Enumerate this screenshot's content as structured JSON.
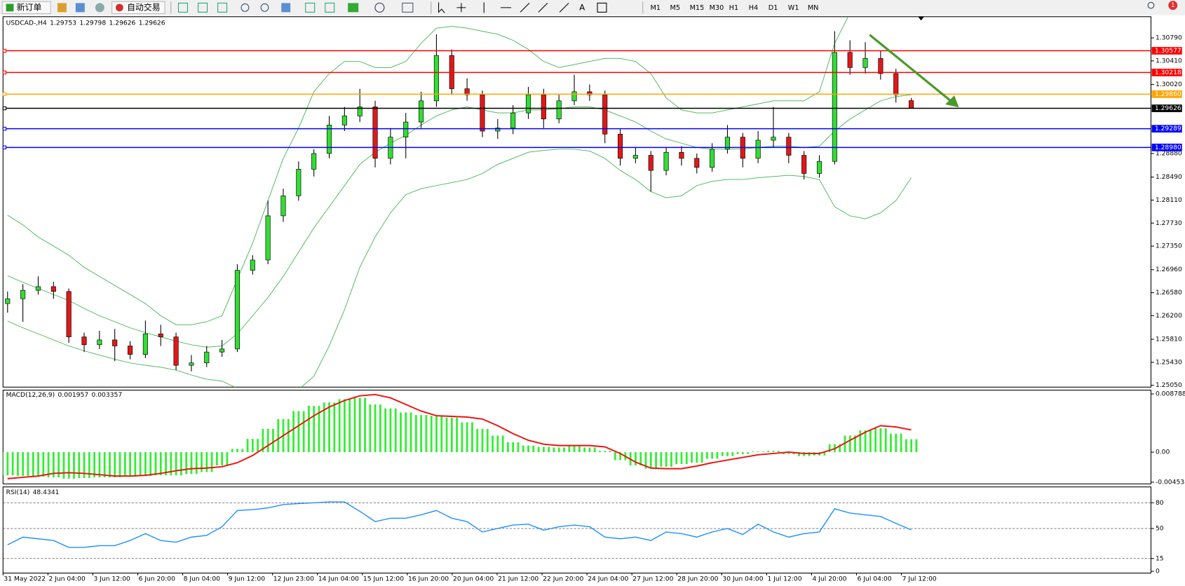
{
  "toolbar": {
    "new_order": "新订单",
    "auto_trading": "自动交易",
    "timeframes": [
      "M1",
      "M5",
      "M15",
      "M30",
      "H1",
      "H4",
      "D1",
      "W1",
      "MN"
    ],
    "badge": "1"
  },
  "time_axis": {
    "labels": [
      "31 May 2022",
      "2 Jun 04:00",
      "3 Jun 12:00",
      "6 Jun 20:00",
      "8 Jun 04:00",
      "9 Jun 12:00",
      "12 Jun 23:00",
      "14 Jun 04:00",
      "15 Jun 12:00",
      "16 Jun 20:00",
      "20 Jun 04:00",
      "21 Jun 12:00",
      "22 Jun 20:00",
      "24 Jun 04:00",
      "27 Jun 12:00",
      "28 Jun 20:00",
      "30 Jun 04:00",
      "1 Jul 12:00",
      "4 Jul 20:00",
      "6 Jul 04:00",
      "7 Jul 12:00"
    ]
  },
  "chart_data": [
    {
      "type": "candlestick",
      "title": "USDCAD-,H4",
      "up_color": "#33dd33",
      "down_color": "#e01818",
      "grid": false,
      "ylim": [
        1.2502,
        1.3114
      ],
      "yticks": [
        {
          "value": 1.3079,
          "label": "1.30790"
        },
        {
          "value": 1.3041,
          "label": "1.30410"
        },
        {
          "value": 1.3002,
          "label": "1.30020"
        },
        {
          "value": 1.2888,
          "label": "1.28880"
        },
        {
          "value": 1.2849,
          "label": "1.28490"
        },
        {
          "value": 1.2811,
          "label": "1.28110"
        },
        {
          "value": 1.2773,
          "label": "1.27730"
        },
        {
          "value": 1.2735,
          "label": "1.27350"
        },
        {
          "value": 1.2696,
          "label": "1.26960"
        },
        {
          "value": 1.2658,
          "label": "1.26580"
        },
        {
          "value": 1.262,
          "label": "1.26200"
        },
        {
          "value": 1.2581,
          "label": "1.25810"
        },
        {
          "value": 1.2543,
          "label": "1.25430"
        },
        {
          "value": 1.2505,
          "label": "1.25050"
        }
      ],
      "open": [
        1.264,
        1.2648,
        1.2662,
        1.2668,
        1.266,
        1.2585,
        1.2572,
        1.258,
        1.257,
        1.2556,
        1.259,
        1.2585,
        1.2538,
        1.2542,
        1.256,
        1.2565,
        1.2695,
        1.2712,
        1.2785,
        1.2818,
        1.2862,
        1.2888,
        1.2935,
        1.295,
        1.2965,
        1.288,
        1.2915,
        1.294,
        1.2975,
        1.305,
        1.2995,
        1.2985,
        1.2925,
        1.293,
        1.2955,
        1.2985,
        1.2945,
        1.2975,
        1.299,
        1.2985,
        1.292,
        1.288,
        1.2885,
        1.286,
        1.289,
        1.288,
        1.2865,
        1.2895,
        1.2915,
        1.288,
        1.291,
        1.2915,
        1.2885,
        1.2855,
        1.2875,
        1.3055,
        1.303,
        1.3045,
        1.302,
        1.29753
      ],
      "high": [
        1.266,
        1.2672,
        1.2685,
        1.2676,
        1.2665,
        1.2592,
        1.2595,
        1.2598,
        1.2578,
        1.2612,
        1.2605,
        1.2592,
        1.2555,
        1.257,
        1.258,
        1.2705,
        1.272,
        1.281,
        1.283,
        1.2875,
        1.2895,
        1.295,
        1.2965,
        1.2995,
        1.2975,
        1.293,
        1.2955,
        1.299,
        1.3085,
        1.306,
        1.3012,
        1.2992,
        1.2945,
        1.2968,
        1.2998,
        1.2995,
        1.2985,
        1.3018,
        1.3002,
        1.2992,
        1.2928,
        1.2898,
        1.2892,
        1.2898,
        1.29,
        1.2888,
        1.2905,
        1.2935,
        1.2922,
        1.2925,
        1.2965,
        1.2922,
        1.2892,
        1.2885,
        1.309,
        1.3075,
        1.3072,
        1.3058,
        1.3028,
        1.29798
      ],
      "low": [
        1.2625,
        1.261,
        1.2655,
        1.2648,
        1.2575,
        1.256,
        1.2565,
        1.2545,
        1.2548,
        1.255,
        1.257,
        1.253,
        1.2528,
        1.2535,
        1.2552,
        1.256,
        1.2688,
        1.2705,
        1.2775,
        1.281,
        1.285,
        1.288,
        1.2925,
        1.294,
        1.2865,
        1.287,
        1.288,
        1.293,
        1.2965,
        1.2985,
        1.2975,
        1.2915,
        1.2912,
        1.292,
        1.2945,
        1.293,
        1.2938,
        1.2968,
        1.2975,
        1.2905,
        1.2868,
        1.2872,
        1.2825,
        1.2852,
        1.2868,
        1.2855,
        1.2858,
        1.2888,
        1.2865,
        1.2872,
        1.2898,
        1.2872,
        1.2845,
        1.2848,
        1.287,
        1.3018,
        1.302,
        1.301,
        1.2972,
        1.29626
      ],
      "close": [
        1.2648,
        1.2662,
        1.2668,
        1.266,
        1.2585,
        1.2572,
        1.258,
        1.257,
        1.2556,
        1.259,
        1.2585,
        1.2538,
        1.2542,
        1.256,
        1.2565,
        1.2695,
        1.2712,
        1.2785,
        1.2818,
        1.2862,
        1.2888,
        1.2935,
        1.295,
        1.2965,
        1.288,
        1.2915,
        1.294,
        1.2975,
        1.305,
        1.2995,
        1.2985,
        1.2925,
        1.293,
        1.2955,
        1.2985,
        1.2945,
        1.2975,
        1.299,
        1.2985,
        1.292,
        1.288,
        1.2885,
        1.286,
        1.289,
        1.288,
        1.2865,
        1.2895,
        1.2915,
        1.288,
        1.291,
        1.2915,
        1.2885,
        1.2855,
        1.2875,
        1.3055,
        1.303,
        1.3045,
        1.302,
        1.2985,
        1.29626
      ],
      "bands": [
        {
          "color": "#3cb44b",
          "values": [
            1.2786,
            1.277,
            1.275,
            1.2735,
            1.272,
            1.27,
            1.2685,
            1.267,
            1.2655,
            1.264,
            1.262,
            1.2605,
            1.2605,
            1.261,
            1.262,
            1.268,
            1.274,
            1.281,
            1.288,
            1.293,
            1.299,
            1.302,
            1.304,
            1.304,
            1.303,
            1.303,
            1.304,
            1.307,
            1.3095,
            1.3098,
            1.3095,
            1.309,
            1.3085,
            1.3075,
            1.306,
            1.304,
            1.303,
            1.3035,
            1.304,
            1.3045,
            1.3045,
            1.304,
            1.302,
            1.298,
            1.296,
            1.2955,
            1.2955,
            1.296,
            1.2965,
            1.297,
            1.2975,
            1.2975,
            1.2975,
            1.299,
            1.307,
            1.312,
            1.315,
            1.317,
            1.318,
            1.3185
          ]
        },
        {
          "color": "#3cb44b",
          "values": [
            1.2686,
            1.2675,
            1.2665,
            1.2655,
            1.2645,
            1.2632,
            1.262,
            1.261,
            1.26,
            1.2592,
            1.2585,
            1.2578,
            1.2572,
            1.2568,
            1.257,
            1.259,
            1.262,
            1.265,
            1.2685,
            1.2725,
            1.2765,
            1.28,
            1.2835,
            1.287,
            1.289,
            1.2905,
            1.2918,
            1.2935,
            1.295,
            1.296,
            1.2965,
            1.296,
            1.2955,
            1.2955,
            1.296,
            1.296,
            1.2962,
            1.2965,
            1.2965,
            1.296,
            1.295,
            1.294,
            1.2925,
            1.2912,
            1.2905,
            1.2898,
            1.2895,
            1.2895,
            1.2895,
            1.2898,
            1.29,
            1.29,
            1.2898,
            1.29,
            1.2925,
            1.2945,
            1.296,
            1.2975,
            1.2982,
            1.2985
          ]
        },
        {
          "color": "#3cb44b",
          "values": [
            1.2611,
            1.26,
            1.259,
            1.258,
            1.257,
            1.2562,
            1.2555,
            1.2548,
            1.2542,
            1.2538,
            1.2535,
            1.253,
            1.2522,
            1.2515,
            1.2512,
            1.25,
            1.2495,
            1.249,
            1.249,
            1.2498,
            1.252,
            1.257,
            1.263,
            1.27,
            1.275,
            1.279,
            1.282,
            1.283,
            1.2835,
            1.284,
            1.2845,
            1.2855,
            1.287,
            1.288,
            1.289,
            1.2893,
            1.2895,
            1.2895,
            1.2892,
            1.288,
            1.286,
            1.2845,
            1.2825,
            1.2815,
            1.2818,
            1.2835,
            1.2842,
            1.2845,
            1.2845,
            1.2848,
            1.285,
            1.2852,
            1.285,
            1.2845,
            1.28,
            1.2785,
            1.278,
            1.279,
            1.281,
            1.2848
          ]
        }
      ],
      "levels": [
        {
          "value": 1.30577,
          "color": "#ff0000"
        },
        {
          "value": 1.30218,
          "color": "#ff0000"
        },
        {
          "value": 1.2986,
          "label": "1.29860",
          "color": "#ffa500"
        },
        {
          "value": 1.29626,
          "color": "#000000"
        },
        {
          "value": 1.29289,
          "color": "#0000ff"
        },
        {
          "value": 1.2898,
          "label": "1.28980",
          "color": "#0000ff"
        }
      ]
    },
    {
      "type": "macd",
      "title": "MACD(12,26,9)",
      "ylim": [
        -0.00479,
        0.00936
      ],
      "yticks": [
        0.008788,
        {
          "value": 0,
          "label": "0.00"
        },
        -0.004538
      ],
      "series": [
        {
          "color": "#33ee33",
          "values": [
            -0.0035,
            -0.0036,
            -0.0037,
            -0.0038,
            -0.004,
            -0.0039,
            -0.0038,
            -0.0038,
            -0.0037,
            -0.0036,
            -0.0035,
            -0.0035,
            -0.0033,
            -0.003,
            -0.002,
            0.0005,
            0.002,
            0.0035,
            0.005,
            0.0062,
            0.007,
            0.0075,
            0.008,
            0.0082,
            0.0072,
            0.0066,
            0.006,
            0.0056,
            0.0055,
            0.0052,
            0.0045,
            0.0035,
            0.0025,
            0.0015,
            0.001,
            0.0008,
            0.0007,
            0.0009,
            0.0007,
            0.0002,
            -0.0012,
            -0.002,
            -0.0025,
            -0.0022,
            -0.0018,
            -0.0016,
            -0.001,
            -0.0006,
            -0.0003,
            0.0001,
            0.0002,
            -0.0003,
            -0.0006,
            -0.0005,
            0.0012,
            0.0025,
            0.0033,
            0.0036,
            0.0028,
            0.001957
          ]
        },
        {
          "color": "#ee1111",
          "values": [
            -0.004,
            -0.0038,
            -0.0036,
            -0.0032,
            -0.0031,
            -0.0032,
            -0.0034,
            -0.0036,
            -0.0036,
            -0.0035,
            -0.0032,
            -0.0028,
            -0.0025,
            -0.0024,
            -0.0022,
            -0.0016,
            -0.0005,
            0.001,
            0.0025,
            0.004,
            0.0055,
            0.0068,
            0.0078,
            0.0085,
            0.0087,
            0.0082,
            0.0072,
            0.0062,
            0.0055,
            0.0054,
            0.0053,
            0.005,
            0.004,
            0.0028,
            0.0018,
            0.0012,
            0.001,
            0.001,
            0.001,
            0.0008,
            -0.0002,
            -0.0015,
            -0.0024,
            -0.0025,
            -0.0025,
            -0.0021,
            -0.0016,
            -0.0012,
            -0.0008,
            -0.0004,
            -0.0002,
            0.0,
            -0.0002,
            -0.0002,
            0.0005,
            0.0018,
            0.003,
            0.004,
            0.0038,
            0.003357
          ]
        }
      ]
    },
    {
      "type": "line",
      "title": "RSI(14)",
      "ylim": [
        -2,
        98.5
      ],
      "yticks": [
        80,
        50,
        15,
        0
      ],
      "levels": [
        80,
        50,
        15
      ],
      "series": [
        {
          "color": "#1e90ff",
          "values": [
            31,
            40,
            38,
            36,
            28,
            28,
            30,
            30,
            36,
            44,
            36,
            34,
            40,
            42,
            52,
            71,
            72,
            74,
            78,
            79,
            80,
            81,
            81,
            70,
            58,
            62,
            62,
            66,
            71,
            62,
            58,
            46,
            50,
            54,
            55,
            48,
            52,
            54,
            52,
            40,
            38,
            40,
            36,
            46,
            44,
            40,
            46,
            50,
            43,
            55,
            46,
            40,
            44,
            46,
            73,
            68,
            66,
            64,
            56,
            48.4341
          ]
        }
      ]
    }
  ]
}
